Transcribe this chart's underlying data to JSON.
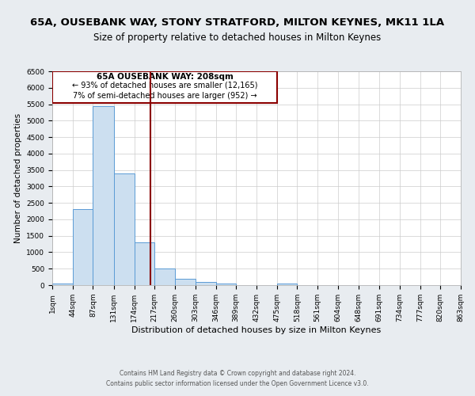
{
  "title": "65A, OUSEBANK WAY, STONY STRATFORD, MILTON KEYNES, MK11 1LA",
  "subtitle": "Size of property relative to detached houses in Milton Keynes",
  "xlabel": "Distribution of detached houses by size in Milton Keynes",
  "ylabel": "Number of detached properties",
  "bin_edges": [
    1,
    44,
    87,
    131,
    174,
    217,
    260,
    303,
    346,
    389,
    432,
    475,
    518,
    561,
    604,
    648,
    691,
    734,
    777,
    820,
    863
  ],
  "bar_heights": [
    50,
    2300,
    5450,
    3400,
    1300,
    500,
    200,
    100,
    50,
    0,
    0,
    50,
    0,
    0,
    0,
    0,
    0,
    0,
    0,
    0
  ],
  "bar_facecolor": "#ccdff0",
  "bar_edgecolor": "#5b9bd5",
  "property_size": 208,
  "property_line_color": "#8b0000",
  "annotation_text_line1": "65A OUSEBANK WAY: 208sqm",
  "annotation_text_line2": "← 93% of detached houses are smaller (12,165)",
  "annotation_text_line3": "7% of semi-detached houses are larger (952) →",
  "annotation_box_color": "#8b0000",
  "ylim": [
    0,
    6500
  ],
  "yticks": [
    0,
    500,
    1000,
    1500,
    2000,
    2500,
    3000,
    3500,
    4000,
    4500,
    5000,
    5500,
    6000,
    6500
  ],
  "bg_color": "#e8ecf0",
  "axes_bg_color": "#ffffff",
  "footer_line1": "Contains HM Land Registry data © Crown copyright and database right 2024.",
  "footer_line2": "Contains public sector information licensed under the Open Government Licence v3.0.",
  "title_fontsize": 9.5,
  "subtitle_fontsize": 8.5,
  "tick_fontsize": 6.5,
  "label_fontsize": 8,
  "ylabel_fontsize": 7.5
}
